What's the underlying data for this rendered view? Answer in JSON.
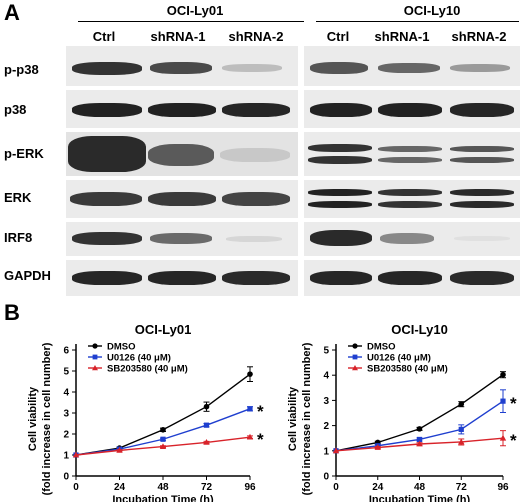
{
  "panel_a": {
    "letter": "A",
    "cell_lines": [
      "OCI-Ly01",
      "OCI-Ly10"
    ],
    "lanes": [
      "Ctrl",
      "shRNA-1",
      "shRNA-2"
    ],
    "rows": [
      "p-p38",
      "p38",
      "p-ERK",
      "ERK",
      "IRF8",
      "GAPDH"
    ]
  },
  "panel_b": {
    "letter": "B"
  },
  "chart_data": [
    {
      "type": "line",
      "title": "OCI-Ly01",
      "xlabel": "Incubation Time (h)",
      "ylabel": "Cell viability",
      "ylabel2": "(fold increase in cell number)",
      "x": [
        0,
        24,
        48,
        72,
        96
      ],
      "xticks": [
        "0",
        "24",
        "48",
        "72",
        "96"
      ],
      "yticks": [
        "0",
        "1",
        "2",
        "3",
        "4",
        "5",
        "6"
      ],
      "xlim": [
        0,
        96
      ],
      "ylim": [
        0,
        6
      ],
      "legend": "top-left",
      "significance": [
        "*",
        "*"
      ],
      "series": [
        {
          "name": "DMSO",
          "color": "#000000",
          "marker": "circle",
          "values": [
            1.0,
            1.33,
            2.2,
            3.3,
            4.85
          ],
          "errors": [
            0.0,
            0.05,
            0.08,
            0.22,
            0.35
          ]
        },
        {
          "name": "U0126 (40 μM)",
          "color": "#1f3fcf",
          "marker": "square",
          "values": [
            1.0,
            1.28,
            1.75,
            2.42,
            3.2
          ],
          "errors": [
            0.0,
            0.04,
            0.05,
            0.08,
            0.1
          ]
        },
        {
          "name": "SB203580 (40 μM)",
          "color": "#d8232a",
          "marker": "triangle",
          "values": [
            1.0,
            1.22,
            1.4,
            1.6,
            1.85
          ],
          "errors": [
            0.0,
            0.03,
            0.04,
            0.05,
            0.06
          ]
        }
      ]
    },
    {
      "type": "line",
      "title": "OCI-Ly10",
      "xlabel": "Incubation Time (h)",
      "ylabel": "Cell viability",
      "ylabel2": "(fold increase in cell number)",
      "x": [
        0,
        24,
        48,
        72,
        96
      ],
      "xticks": [
        "0",
        "24",
        "48",
        "72",
        "96"
      ],
      "yticks": [
        "0",
        "1",
        "2",
        "3",
        "4",
        "5"
      ],
      "xlim": [
        0,
        96
      ],
      "ylim": [
        0,
        5
      ],
      "legend": "top-left",
      "significance": [
        "*",
        "*"
      ],
      "series": [
        {
          "name": "DMSO",
          "color": "#000000",
          "marker": "circle",
          "values": [
            1.0,
            1.33,
            1.87,
            2.85,
            4.02
          ],
          "errors": [
            0.0,
            0.05,
            0.06,
            0.1,
            0.12
          ]
        },
        {
          "name": "U0126 (40 μM)",
          "color": "#1f3fcf",
          "marker": "square",
          "values": [
            1.0,
            1.2,
            1.45,
            1.85,
            2.97
          ],
          "errors": [
            0.0,
            0.05,
            0.06,
            0.18,
            0.45
          ]
        },
        {
          "name": "SB203580 (40 μM)",
          "color": "#d8232a",
          "marker": "triangle",
          "values": [
            1.0,
            1.13,
            1.27,
            1.35,
            1.5
          ],
          "errors": [
            0.0,
            0.04,
            0.05,
            0.12,
            0.3
          ]
        }
      ]
    }
  ]
}
